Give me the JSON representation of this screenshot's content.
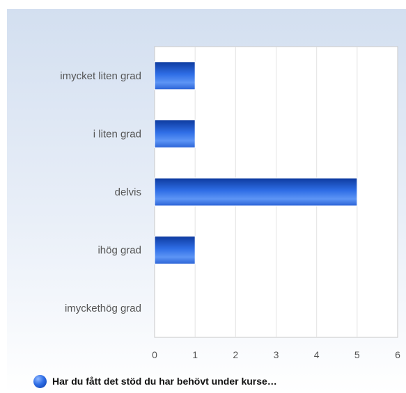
{
  "chart_data": {
    "type": "bar",
    "orientation": "horizontal",
    "categories": [
      "imycket liten grad",
      "i liten grad",
      "delvis",
      "ihög grad",
      "imyckethög grad"
    ],
    "series": [
      {
        "name": "Har du fått det stöd du har behövt under kurse…",
        "values": [
          1,
          1,
          5,
          1,
          0
        ]
      }
    ],
    "xlim": [
      0,
      6
    ],
    "xticks": [
      "0",
      "1",
      "2",
      "3",
      "4",
      "5",
      "6"
    ],
    "grid": true,
    "legend_position": "bottom-left",
    "bar_color": "#2f6ee6",
    "bar_color_dark": "#0d3a9e"
  }
}
